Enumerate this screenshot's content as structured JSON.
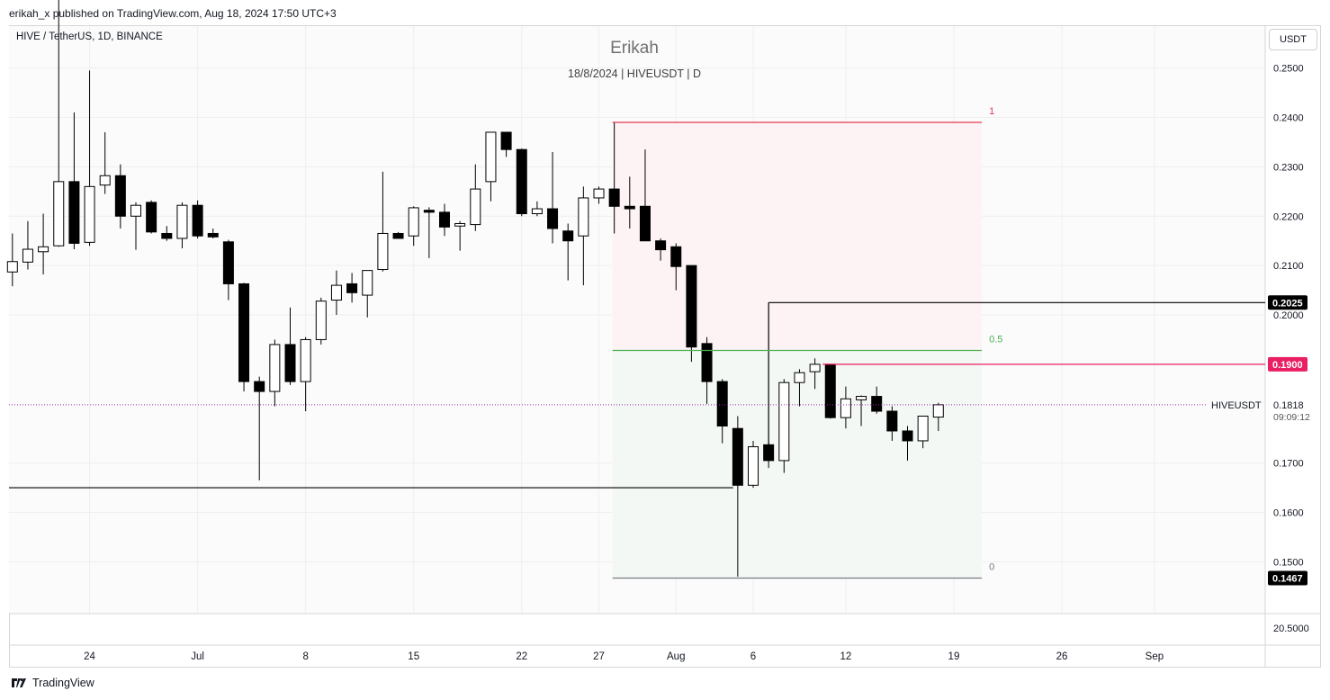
{
  "header": {
    "publish_line": "erikah_x published on TradingView.com, Aug 18, 2024 17:50 UTC+3"
  },
  "legend": {
    "symbol_line": "HIVE / TetherUS, 1D, BINANCE",
    "author": "Erikah",
    "subtitle": "18/8/2024 | HIVEUSDT | D",
    "currency_button": "USDT"
  },
  "footer": {
    "brand": "TradingView"
  },
  "colors": {
    "bull_fill": "#ffffff",
    "bear_fill": "#000000",
    "candle_border": "#000000",
    "fib_top": "#e53950",
    "fib_mid": "#4caf50",
    "fib_bottom": "#787b86",
    "fib_top_zone": "#fdf3f5",
    "fib_bottom_zone": "#f4f8f4",
    "resistance": "#e91e63",
    "price_line": "#9c27b0"
  },
  "chart_data": {
    "type": "candlestick",
    "symbol": "HIVEUSDT",
    "ylim": [
      0.1395,
      0.2585
    ],
    "y_ticks": [
      {
        "value": 0.25,
        "label": "0.2500"
      },
      {
        "value": 0.24,
        "label": "0.2400"
      },
      {
        "value": 0.23,
        "label": "0.2300"
      },
      {
        "value": 0.22,
        "label": "0.2200"
      },
      {
        "value": 0.21,
        "label": "0.2100"
      },
      {
        "value": 0.2,
        "label": "0.2000"
      },
      {
        "value": 0.17,
        "label": "0.1700"
      },
      {
        "value": 0.16,
        "label": "0.1600"
      },
      {
        "value": 0.15,
        "label": "0.1500"
      }
    ],
    "extra_y_label": "20.5000",
    "x_ticks": [
      {
        "index": 5,
        "label": "24"
      },
      {
        "index": 12,
        "label": "Jul"
      },
      {
        "index": 19,
        "label": "8"
      },
      {
        "index": 26,
        "label": "15"
      },
      {
        "index": 33,
        "label": "22"
      },
      {
        "index": 38,
        "label": "27"
      },
      {
        "index": 43,
        "label": "Aug"
      },
      {
        "index": 48,
        "label": "6"
      },
      {
        "index": 54,
        "label": "12"
      },
      {
        "index": 61,
        "label": "19"
      },
      {
        "index": 68,
        "label": "26"
      },
      {
        "index": 74,
        "label": "Sep"
      }
    ],
    "candles": [
      {
        "o": 0.2087,
        "h": 0.2165,
        "l": 0.2058,
        "c": 0.2108
      },
      {
        "o": 0.2107,
        "h": 0.219,
        "l": 0.2092,
        "c": 0.2133
      },
      {
        "o": 0.2128,
        "h": 0.2205,
        "l": 0.2082,
        "c": 0.2138
      },
      {
        "o": 0.214,
        "h": 0.265,
        "l": 0.2138,
        "c": 0.227
      },
      {
        "o": 0.227,
        "h": 0.241,
        "l": 0.2133,
        "c": 0.2145
      },
      {
        "o": 0.2147,
        "h": 0.2495,
        "l": 0.214,
        "c": 0.226
      },
      {
        "o": 0.2263,
        "h": 0.237,
        "l": 0.2245,
        "c": 0.2282
      },
      {
        "o": 0.2282,
        "h": 0.2305,
        "l": 0.2175,
        "c": 0.22
      },
      {
        "o": 0.22,
        "h": 0.2228,
        "l": 0.2132,
        "c": 0.2222
      },
      {
        "o": 0.2228,
        "h": 0.2232,
        "l": 0.2165,
        "c": 0.2168
      },
      {
        "o": 0.2165,
        "h": 0.218,
        "l": 0.215,
        "c": 0.2155
      },
      {
        "o": 0.2155,
        "h": 0.2228,
        "l": 0.2135,
        "c": 0.2222
      },
      {
        "o": 0.2222,
        "h": 0.2232,
        "l": 0.2155,
        "c": 0.216
      },
      {
        "o": 0.2165,
        "h": 0.2175,
        "l": 0.2155,
        "c": 0.2158
      },
      {
        "o": 0.2148,
        "h": 0.2152,
        "l": 0.203,
        "c": 0.2063
      },
      {
        "o": 0.2063,
        "h": 0.2065,
        "l": 0.1845,
        "c": 0.1865
      },
      {
        "o": 0.1865,
        "h": 0.1875,
        "l": 0.1665,
        "c": 0.1845
      },
      {
        "o": 0.1845,
        "h": 0.195,
        "l": 0.1815,
        "c": 0.194
      },
      {
        "o": 0.194,
        "h": 0.2015,
        "l": 0.1858,
        "c": 0.1865
      },
      {
        "o": 0.1865,
        "h": 0.1955,
        "l": 0.1805,
        "c": 0.195
      },
      {
        "o": 0.195,
        "h": 0.2035,
        "l": 0.194,
        "c": 0.2028
      },
      {
        "o": 0.203,
        "h": 0.209,
        "l": 0.2,
        "c": 0.206
      },
      {
        "o": 0.2063,
        "h": 0.2085,
        "l": 0.2025,
        "c": 0.2045
      },
      {
        "o": 0.204,
        "h": 0.209,
        "l": 0.1995,
        "c": 0.209
      },
      {
        "o": 0.2092,
        "h": 0.229,
        "l": 0.2088,
        "c": 0.2165
      },
      {
        "o": 0.2165,
        "h": 0.2168,
        "l": 0.2155,
        "c": 0.2155
      },
      {
        "o": 0.216,
        "h": 0.222,
        "l": 0.214,
        "c": 0.2217
      },
      {
        "o": 0.2212,
        "h": 0.2218,
        "l": 0.2115,
        "c": 0.2208
      },
      {
        "o": 0.2208,
        "h": 0.2225,
        "l": 0.216,
        "c": 0.2178
      },
      {
        "o": 0.218,
        "h": 0.219,
        "l": 0.213,
        "c": 0.2185
      },
      {
        "o": 0.2183,
        "h": 0.2305,
        "l": 0.217,
        "c": 0.2255
      },
      {
        "o": 0.227,
        "h": 0.237,
        "l": 0.223,
        "c": 0.237
      },
      {
        "o": 0.237,
        "h": 0.237,
        "l": 0.232,
        "c": 0.2335
      },
      {
        "o": 0.2335,
        "h": 0.2337,
        "l": 0.22,
        "c": 0.2205
      },
      {
        "o": 0.2205,
        "h": 0.223,
        "l": 0.22,
        "c": 0.2215
      },
      {
        "o": 0.2215,
        "h": 0.233,
        "l": 0.2145,
        "c": 0.2175
      },
      {
        "o": 0.217,
        "h": 0.2185,
        "l": 0.207,
        "c": 0.215
      },
      {
        "o": 0.216,
        "h": 0.226,
        "l": 0.206,
        "c": 0.2237
      },
      {
        "o": 0.2237,
        "h": 0.226,
        "l": 0.2225,
        "c": 0.2255
      },
      {
        "o": 0.2255,
        "h": 0.239,
        "l": 0.2165,
        "c": 0.222
      },
      {
        "o": 0.222,
        "h": 0.228,
        "l": 0.2175,
        "c": 0.2215
      },
      {
        "o": 0.222,
        "h": 0.2335,
        "l": 0.215,
        "c": 0.215
      },
      {
        "o": 0.215,
        "h": 0.2155,
        "l": 0.211,
        "c": 0.2132
      },
      {
        "o": 0.2138,
        "h": 0.2145,
        "l": 0.205,
        "c": 0.2098
      },
      {
        "o": 0.21,
        "h": 0.21,
        "l": 0.1905,
        "c": 0.1935
      },
      {
        "o": 0.1942,
        "h": 0.1955,
        "l": 0.182,
        "c": 0.1865
      },
      {
        "o": 0.1865,
        "h": 0.187,
        "l": 0.174,
        "c": 0.1775
      },
      {
        "o": 0.177,
        "h": 0.1795,
        "l": 0.147,
        "c": 0.1655
      },
      {
        "o": 0.1655,
        "h": 0.1745,
        "l": 0.165,
        "c": 0.1733
      },
      {
        "o": 0.1737,
        "h": 0.174,
        "l": 0.169,
        "c": 0.1705
      },
      {
        "o": 0.1705,
        "h": 0.187,
        "l": 0.168,
        "c": 0.1863
      },
      {
        "o": 0.1863,
        "h": 0.189,
        "l": 0.1815,
        "c": 0.1883
      },
      {
        "o": 0.1885,
        "h": 0.1912,
        "l": 0.185,
        "c": 0.19
      },
      {
        "o": 0.19,
        "h": 0.19,
        "l": 0.179,
        "c": 0.1792
      },
      {
        "o": 0.1792,
        "h": 0.1855,
        "l": 0.177,
        "c": 0.183
      },
      {
        "o": 0.1828,
        "h": 0.1837,
        "l": 0.1775,
        "c": 0.1835
      },
      {
        "o": 0.1835,
        "h": 0.1855,
        "l": 0.18,
        "c": 0.1805
      },
      {
        "o": 0.1805,
        "h": 0.1815,
        "l": 0.1745,
        "c": 0.1765
      },
      {
        "o": 0.1765,
        "h": 0.1775,
        "l": 0.1705,
        "c": 0.1745
      },
      {
        "o": 0.1745,
        "h": 0.1795,
        "l": 0.173,
        "c": 0.1795
      },
      {
        "o": 0.1793,
        "h": 0.1822,
        "l": 0.1765,
        "c": 0.1818
      }
    ],
    "horizontal_lines": [
      {
        "value": 0.165,
        "from_index": 0,
        "to_index": 46.7,
        "color": "#000000"
      },
      {
        "value": 0.2025,
        "from_index": 49,
        "to_index": 80,
        "color": "#000000",
        "start_value": 0.1705
      },
      {
        "value": 0.19,
        "from_index": 52.5,
        "to_index": 80,
        "color": "#e91e63"
      }
    ],
    "fib_retracement": {
      "from_index": 39,
      "to_index": 62,
      "levels": [
        {
          "ratio": "1",
          "value": 0.239,
          "color": "#e53950"
        },
        {
          "ratio": "0.5",
          "value": 0.1928,
          "color": "#4caf50"
        },
        {
          "ratio": "0",
          "value": 0.1467,
          "color": "#787b86"
        }
      ]
    },
    "price_tags": [
      {
        "value": 0.2025,
        "label": "0.2025",
        "bg": "#000000"
      },
      {
        "value": 0.19,
        "label": "0.1900",
        "bg": "#e91e63"
      },
      {
        "value": 0.1467,
        "label": "0.1467",
        "bg": "#000000"
      }
    ],
    "last_price": {
      "value": 0.1818,
      "label": "0.1818",
      "name": "HIVEUSDT",
      "countdown": "09:09:12"
    }
  }
}
